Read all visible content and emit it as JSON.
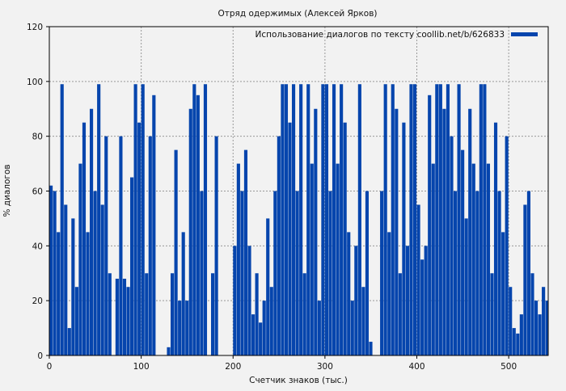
{
  "chart_data": {
    "type": "bar",
    "title": "Отряд одержимых (Алексей Ярков)",
    "xlabel": "Счетчик знаков (тыс.)",
    "ylabel": "% диалогов",
    "xlim": [
      0,
      543
    ],
    "ylim": [
      0,
      120
    ],
    "xticks": [
      0,
      100,
      200,
      300,
      400,
      500
    ],
    "yticks": [
      0,
      20,
      40,
      60,
      80,
      100,
      120
    ],
    "grid": true,
    "legend": {
      "label": "Использование диалогов по тексту coollib.net/b/626833",
      "placement": "top-right"
    },
    "bar_color": "#0645ad",
    "x_step": 4,
    "values": [
      62,
      60,
      45,
      99,
      55,
      10,
      50,
      25,
      70,
      85,
      45,
      90,
      60,
      99,
      55,
      80,
      30,
      0,
      28,
      80,
      28,
      25,
      65,
      99,
      85,
      99,
      30,
      80,
      95,
      0,
      0,
      0,
      3,
      30,
      75,
      20,
      45,
      20,
      90,
      99,
      95,
      60,
      99,
      0,
      30,
      80,
      0,
      0,
      0,
      0,
      40,
      70,
      60,
      75,
      40,
      15,
      30,
      12,
      20,
      50,
      25,
      60,
      80,
      99,
      99,
      85,
      99,
      60,
      99,
      30,
      99,
      70,
      90,
      20,
      99,
      99,
      60,
      99,
      70,
      99,
      85,
      45,
      20,
      40,
      99,
      25,
      60,
      5,
      0,
      0,
      60,
      99,
      45,
      99,
      90,
      30,
      85,
      40,
      99,
      99,
      55,
      35,
      40,
      95,
      70,
      99,
      99,
      90,
      99,
      80,
      60,
      99,
      75,
      50,
      90,
      70,
      60,
      99,
      99,
      70,
      30,
      85,
      60,
      45,
      80,
      25,
      10,
      8,
      15,
      55,
      60,
      30,
      20,
      15,
      25,
      20
    ]
  }
}
